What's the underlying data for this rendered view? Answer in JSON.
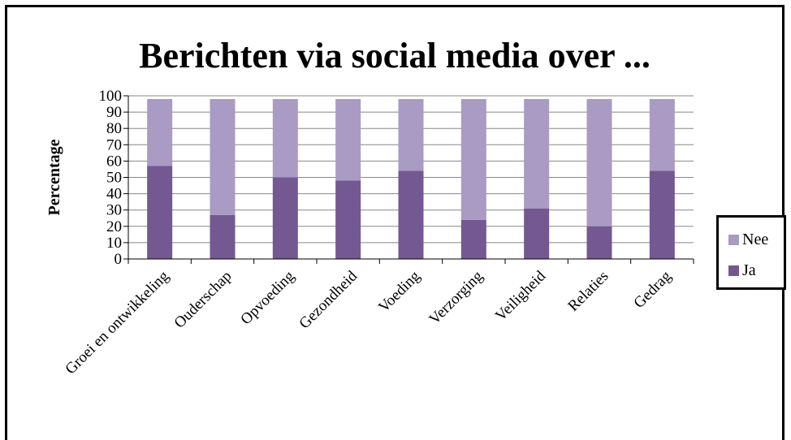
{
  "chart_data": {
    "type": "bar",
    "stacked": true,
    "title": "Berichten via social media over ...",
    "ylabel": "Percentage",
    "xlabel": "",
    "ylim": [
      0,
      100
    ],
    "yticks": [
      0,
      10,
      20,
      30,
      40,
      50,
      60,
      70,
      80,
      90,
      100
    ],
    "grid": true,
    "legend_position": "right",
    "categories": [
      "Groei en ontwikkeling",
      "Ouderschap",
      "Opvoeding",
      "Gezondheid",
      "Voeding",
      "Verzorging",
      "Veiligheid",
      "Relaties",
      "Gedrag"
    ],
    "series": [
      {
        "name": "Ja",
        "color": "#735892",
        "values": [
          57,
          27,
          50,
          48,
          54,
          24,
          31,
          20,
          54
        ]
      },
      {
        "name": "Nee",
        "color": "#a99bc3",
        "values": [
          41,
          71,
          48,
          50,
          44,
          74,
          67,
          78,
          44
        ]
      }
    ]
  }
}
